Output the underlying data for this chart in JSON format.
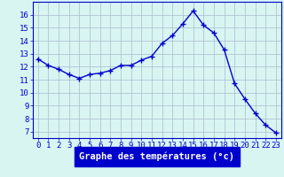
{
  "hours": [
    0,
    1,
    2,
    3,
    4,
    5,
    6,
    7,
    8,
    9,
    10,
    11,
    12,
    13,
    14,
    15,
    16,
    17,
    18,
    19,
    20,
    21,
    22,
    23
  ],
  "temperatures": [
    12.6,
    12.1,
    11.8,
    11.4,
    11.1,
    11.4,
    11.5,
    11.7,
    12.1,
    12.1,
    12.5,
    12.8,
    13.8,
    14.4,
    15.3,
    16.3,
    15.2,
    14.6,
    13.3,
    10.7,
    9.5,
    8.4,
    7.5,
    6.9
  ],
  "line_color": "#0000cc",
  "marker": "+",
  "marker_size": 4,
  "marker_linewidth": 1.0,
  "xlabel": "Graphe des températures (°c)",
  "ylabel_ticks": [
    7,
    8,
    9,
    10,
    11,
    12,
    13,
    14,
    15,
    16
  ],
  "ylim": [
    6.5,
    17.0
  ],
  "xlim": [
    -0.5,
    23.5
  ],
  "bg_color": "#d8f5f2",
  "grid_color": "#aabbcc",
  "axis_color": "#0000cc",
  "tick_label_color": "#0000cc",
  "xlabel_bg": "#0000cc",
  "xlabel_color": "#ffffff",
  "tick_fontsize": 6.5,
  "xlabel_fontsize": 7.5,
  "linewidth": 1.0
}
